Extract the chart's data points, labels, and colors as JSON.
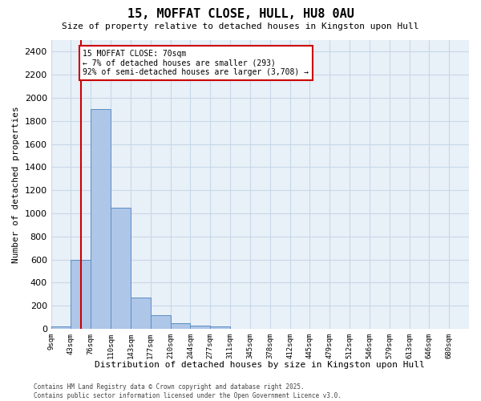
{
  "title": "15, MOFFAT CLOSE, HULL, HU8 0AU",
  "subtitle": "Size of property relative to detached houses in Kingston upon Hull",
  "xlabel": "Distribution of detached houses by size in Kingston upon Hull",
  "ylabel": "Number of detached properties",
  "bins": [
    "9sqm",
    "43sqm",
    "76sqm",
    "110sqm",
    "143sqm",
    "177sqm",
    "210sqm",
    "244sqm",
    "277sqm",
    "311sqm",
    "345sqm",
    "378sqm",
    "412sqm",
    "445sqm",
    "479sqm",
    "512sqm",
    "546sqm",
    "579sqm",
    "613sqm",
    "646sqm",
    "680sqm"
  ],
  "bar_heights": [
    20,
    600,
    1900,
    1050,
    270,
    120,
    50,
    30,
    20,
    0,
    0,
    0,
    0,
    0,
    0,
    0,
    0,
    0,
    0,
    0,
    0
  ],
  "bar_color": "#aec6e8",
  "bar_edgecolor": "#5a8fc2",
  "grid_color": "#c8d8e8",
  "background_color": "#e8f0f8",
  "vline_bin": 1.5,
  "vline_color": "#cc0000",
  "ylim": [
    0,
    2500
  ],
  "yticks": [
    0,
    200,
    400,
    600,
    800,
    1000,
    1200,
    1400,
    1600,
    1800,
    2000,
    2200,
    2400
  ],
  "annotation_title": "15 MOFFAT CLOSE: 70sqm",
  "annotation_line1": "← 7% of detached houses are smaller (293)",
  "annotation_line2": "92% of semi-detached houses are larger (3,708) →",
  "annotation_box_color": "#ffffff",
  "annotation_box_edgecolor": "#cc0000",
  "footer_line1": "Contains HM Land Registry data © Crown copyright and database right 2025.",
  "footer_line2": "Contains public sector information licensed under the Open Government Licence v3.0."
}
